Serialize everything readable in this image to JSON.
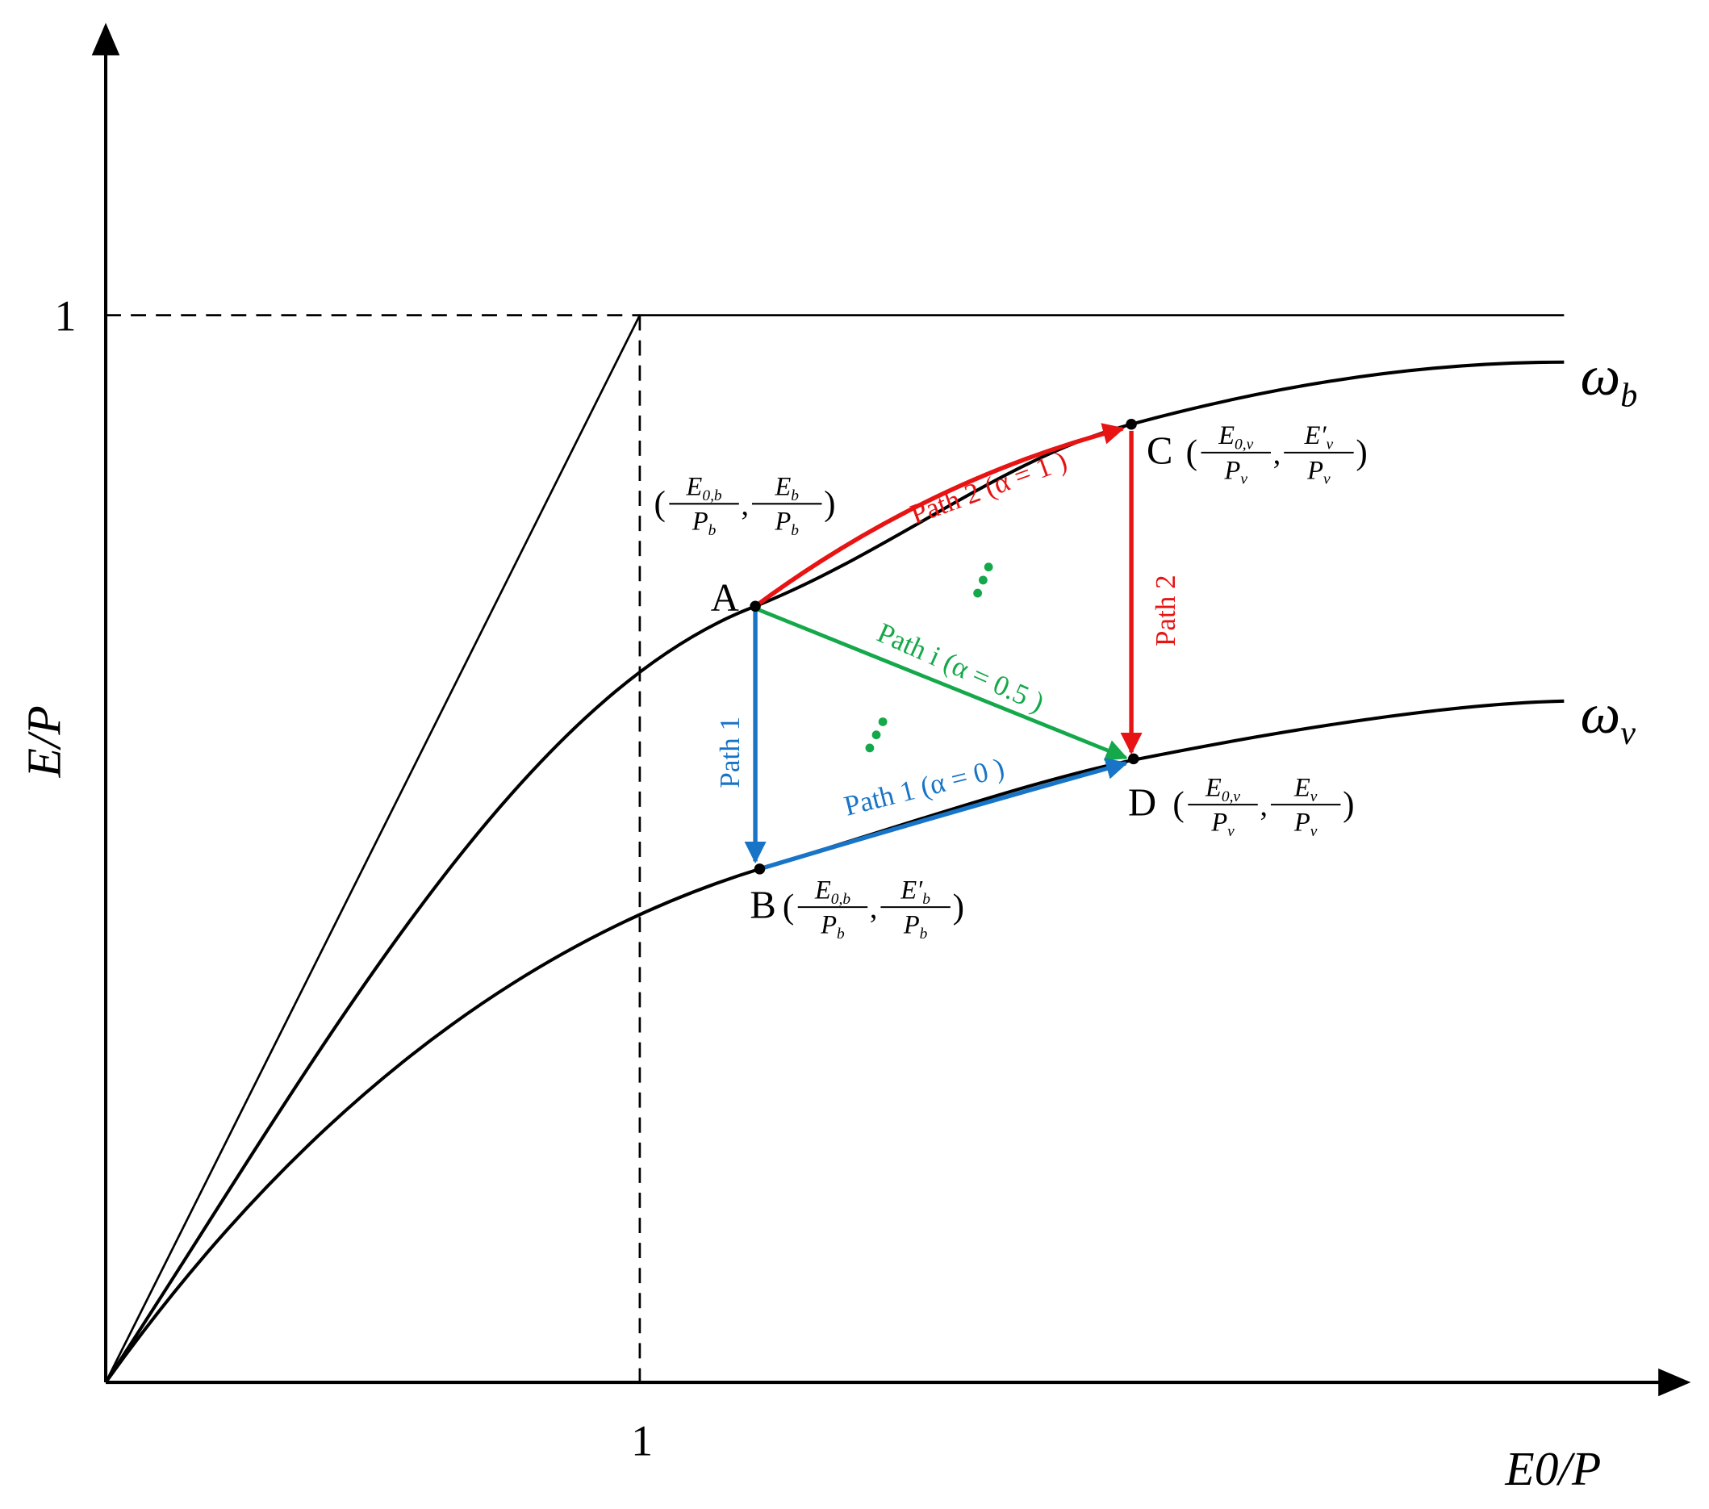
{
  "axes": {
    "y_label": "E/P",
    "x_label": "E0/P",
    "y_tick": "1",
    "x_tick": "1"
  },
  "curves": [
    {
      "base": "ω",
      "sub": "b"
    },
    {
      "base": "ω",
      "sub": "v"
    }
  ],
  "brackets": [
    "(",
    ",",
    ")"
  ],
  "points": [
    {
      "name": "A",
      "coords": [
        [
          {
            "base": "E",
            "sub": "0,b"
          },
          {
            "base": "P",
            "sub": "b"
          }
        ],
        [
          {
            "base": "E",
            "sub": "b"
          },
          {
            "base": "P",
            "sub": "b"
          }
        ]
      ]
    },
    {
      "name": "B",
      "coords": [
        [
          {
            "base": "E",
            "sub": "0,b"
          },
          {
            "base": "P",
            "sub": "b"
          }
        ],
        [
          {
            "base": "E′",
            "sub": "b"
          },
          {
            "base": "P",
            "sub": "b"
          }
        ]
      ]
    },
    {
      "name": "C",
      "coords": [
        [
          {
            "base": "E",
            "sub": "0,v"
          },
          {
            "base": "P",
            "sub": "v"
          }
        ],
        [
          {
            "base": "E′",
            "sub": "v"
          },
          {
            "base": "P",
            "sub": "v"
          }
        ]
      ]
    },
    {
      "name": "D",
      "coords": [
        [
          {
            "base": "E",
            "sub": "0,v"
          },
          {
            "base": "P",
            "sub": "v"
          }
        ],
        [
          {
            "base": "E",
            "sub": "v"
          },
          {
            "base": "P",
            "sub": "v"
          }
        ]
      ]
    }
  ],
  "paths": [
    {
      "label": "Path 2 (α = 1 )"
    },
    {
      "label": "Path i (α = 0.5 )"
    },
    {
      "label": "Path 1 (α = 0 )"
    },
    {
      "label": "Path 2"
    },
    {
      "label": "Path 1"
    }
  ]
}
